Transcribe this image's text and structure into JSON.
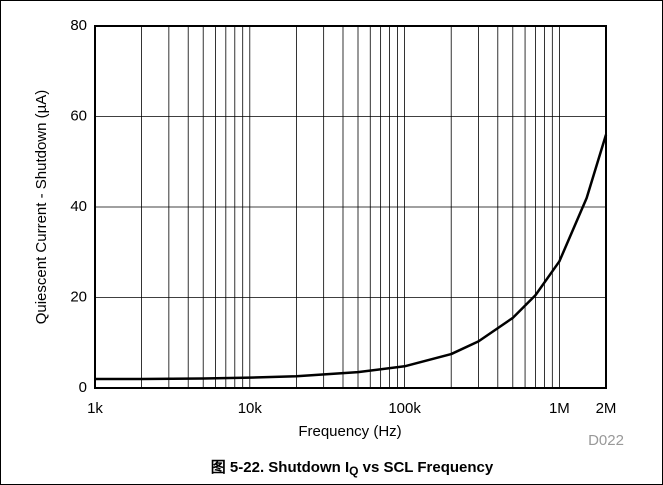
{
  "chart_data": {
    "type": "line",
    "title": "图 5-22. Shutdown I",
    "title_subscript": "Q",
    "title_suffix": " vs SCL Frequency",
    "xlabel": "Frequency (Hz)",
    "ylabel": "Quiescent Current - Shutdown (µA)",
    "annotation": "D022",
    "x": [
      1000,
      2000,
      5000,
      10000,
      20000,
      50000,
      100000,
      200000,
      300000,
      500000,
      700000,
      1000000,
      1500000,
      2000000
    ],
    "values": [
      2.0,
      2.0,
      2.1,
      2.3,
      2.6,
      3.5,
      4.8,
      7.5,
      10.3,
      15.5,
      20.5,
      28,
      42,
      56
    ],
    "color": "#000000",
    "xscale": "log",
    "xlim": [
      1000,
      2000000
    ],
    "xticks": [
      {
        "value": 1000,
        "label": "1k"
      },
      {
        "value": 10000,
        "label": "10k"
      },
      {
        "value": 100000,
        "label": "100k"
      },
      {
        "value": 1000000,
        "label": "1M"
      },
      {
        "value": 2000000,
        "label": "2M"
      }
    ],
    "xminorticks": [
      2000,
      3000,
      4000,
      5000,
      6000,
      7000,
      8000,
      9000,
      20000,
      30000,
      40000,
      50000,
      60000,
      70000,
      80000,
      90000,
      200000,
      300000,
      400000,
      500000,
      600000,
      700000,
      800000,
      900000
    ],
    "ylim": [
      0,
      80
    ],
    "yticks": [
      0,
      20,
      40,
      60,
      80
    ],
    "grid": true
  }
}
